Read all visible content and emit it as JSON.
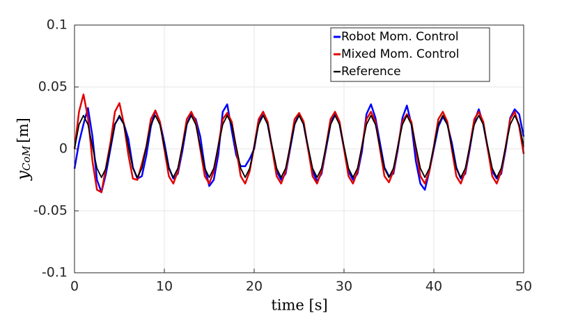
{
  "chart_data": {
    "type": "line",
    "xlabel": "time [s]",
    "ylabel": {
      "symbol": "y",
      "subscript": "CoM",
      "unit": "[m]"
    },
    "x": [
      0,
      0.5,
      1,
      1.5,
      2,
      2.5,
      3,
      3.5,
      4,
      4.5,
      5,
      5.5,
      6,
      6.5,
      7,
      7.5,
      8,
      8.5,
      9,
      9.5,
      10,
      10.5,
      11,
      11.5,
      12,
      12.5,
      13,
      13.5,
      14,
      14.5,
      15,
      15.5,
      16,
      16.5,
      17,
      17.5,
      18,
      18.5,
      19,
      19.5,
      20,
      20.5,
      21,
      21.5,
      22,
      22.5,
      23,
      23.5,
      24,
      24.5,
      25,
      25.5,
      26,
      26.5,
      27,
      27.5,
      28,
      28.5,
      29,
      29.5,
      30,
      30.5,
      31,
      31.5,
      32,
      32.5,
      33,
      33.5,
      34,
      34.5,
      35,
      35.5,
      36,
      36.5,
      37,
      37.5,
      38,
      38.5,
      39,
      39.5,
      40,
      40.5,
      41,
      41.5,
      42,
      42.5,
      43,
      43.5,
      44,
      44.5,
      45,
      45.5,
      46,
      46.5,
      47,
      47.5,
      48,
      48.5,
      49,
      49.5,
      50
    ],
    "series": [
      {
        "name": "Robot Mom. Control",
        "color": "#0000ff",
        "width": 2.5,
        "values": [
          -0.016,
          0.005,
          0.02,
          0.033,
          0.01,
          -0.025,
          -0.035,
          -0.02,
          0.0,
          0.02,
          0.026,
          0.02,
          0.008,
          -0.015,
          -0.024,
          -0.022,
          -0.005,
          0.018,
          0.031,
          0.022,
          0.005,
          -0.015,
          -0.024,
          -0.02,
          -0.002,
          0.02,
          0.028,
          0.024,
          0.01,
          -0.015,
          -0.03,
          -0.025,
          -0.005,
          0.03,
          0.036,
          0.015,
          -0.005,
          -0.014,
          -0.014,
          -0.008,
          0.0,
          0.022,
          0.03,
          0.02,
          0.0,
          -0.018,
          -0.025,
          -0.02,
          0.0,
          0.02,
          0.028,
          0.02,
          0.0,
          -0.018,
          -0.026,
          -0.02,
          0.0,
          0.02,
          0.029,
          0.02,
          0.0,
          -0.018,
          -0.025,
          -0.02,
          -0.002,
          0.028,
          0.036,
          0.025,
          0.005,
          -0.015,
          -0.022,
          -0.02,
          0.0,
          0.025,
          0.035,
          0.02,
          -0.01,
          -0.028,
          -0.033,
          -0.018,
          0.0,
          0.018,
          0.026,
          0.02,
          0.005,
          -0.015,
          -0.024,
          -0.02,
          0.0,
          0.022,
          0.032,
          0.02,
          0.0,
          -0.018,
          -0.024,
          -0.02,
          0.0,
          0.025,
          0.032,
          0.028,
          0.01
        ]
      },
      {
        "name": "Mixed Mom. Control",
        "color": "#e00000",
        "width": 2.5,
        "values": [
          0,
          0.03,
          0.044,
          0.025,
          -0.01,
          -0.033,
          -0.035,
          -0.015,
          0.005,
          0.03,
          0.037,
          0.02,
          -0.005,
          -0.024,
          -0.025,
          -0.012,
          0.002,
          0.024,
          0.031,
          0.022,
          0.0,
          -0.022,
          -0.028,
          -0.018,
          0.002,
          0.024,
          0.03,
          0.022,
          0.0,
          -0.022,
          -0.028,
          -0.018,
          0.002,
          0.024,
          0.029,
          0.022,
          0.0,
          -0.022,
          -0.028,
          -0.018,
          0.002,
          0.024,
          0.03,
          0.022,
          0.0,
          -0.022,
          -0.028,
          -0.018,
          0.002,
          0.024,
          0.029,
          0.022,
          0.0,
          -0.022,
          -0.028,
          -0.018,
          0.002,
          0.024,
          0.03,
          0.022,
          0.0,
          -0.022,
          -0.028,
          -0.018,
          0.002,
          0.024,
          0.03,
          0.022,
          0.0,
          -0.022,
          -0.027,
          -0.018,
          0.002,
          0.022,
          0.028,
          0.022,
          0.0,
          -0.022,
          -0.028,
          -0.018,
          0.002,
          0.024,
          0.03,
          0.022,
          0.0,
          -0.022,
          -0.028,
          -0.018,
          0.002,
          0.024,
          0.03,
          0.022,
          0.0,
          -0.022,
          -0.028,
          -0.018,
          0.002,
          0.024,
          0.03,
          0.018,
          -0.004
        ]
      },
      {
        "name": "Reference",
        "color": "#000000",
        "width": 1.8,
        "values": [
          0,
          0.0197,
          0.027,
          0.0197,
          0.002,
          -0.0157,
          -0.023,
          -0.0157,
          0.002,
          0.0197,
          0.027,
          0.0197,
          0.002,
          -0.0157,
          -0.023,
          -0.0157,
          0.002,
          0.0197,
          0.027,
          0.0197,
          0.002,
          -0.0157,
          -0.023,
          -0.0157,
          0.002,
          0.0197,
          0.027,
          0.0197,
          0.002,
          -0.0157,
          -0.023,
          -0.0157,
          0.002,
          0.0197,
          0.027,
          0.0197,
          0.002,
          -0.0157,
          -0.023,
          -0.0157,
          0.002,
          0.0197,
          0.027,
          0.0197,
          0.002,
          -0.0157,
          -0.023,
          -0.0157,
          0.002,
          0.0197,
          0.027,
          0.0197,
          0.002,
          -0.0157,
          -0.023,
          -0.0157,
          0.002,
          0.0197,
          0.027,
          0.0197,
          0.002,
          -0.0157,
          -0.023,
          -0.0157,
          0.002,
          0.0197,
          0.027,
          0.0197,
          0.002,
          -0.0157,
          -0.023,
          -0.0157,
          0.002,
          0.0197,
          0.027,
          0.0197,
          0.002,
          -0.0157,
          -0.023,
          -0.0157,
          0.002,
          0.0197,
          0.027,
          0.0197,
          0.002,
          -0.0157,
          -0.023,
          -0.0157,
          0.002,
          0.0197,
          0.027,
          0.0197,
          0.002,
          -0.0157,
          -0.023,
          -0.0157,
          0.002,
          0.0197,
          0.027,
          0.0197,
          0.002
        ]
      }
    ],
    "xlim": [
      0,
      50
    ],
    "xticks": [
      0,
      10,
      20,
      30,
      40,
      50
    ],
    "ylim": [
      -0.1,
      0.1
    ],
    "yticks": [
      -0.1,
      -0.05,
      0,
      0.05,
      0.1
    ],
    "grid": true,
    "legend": "top-right"
  }
}
